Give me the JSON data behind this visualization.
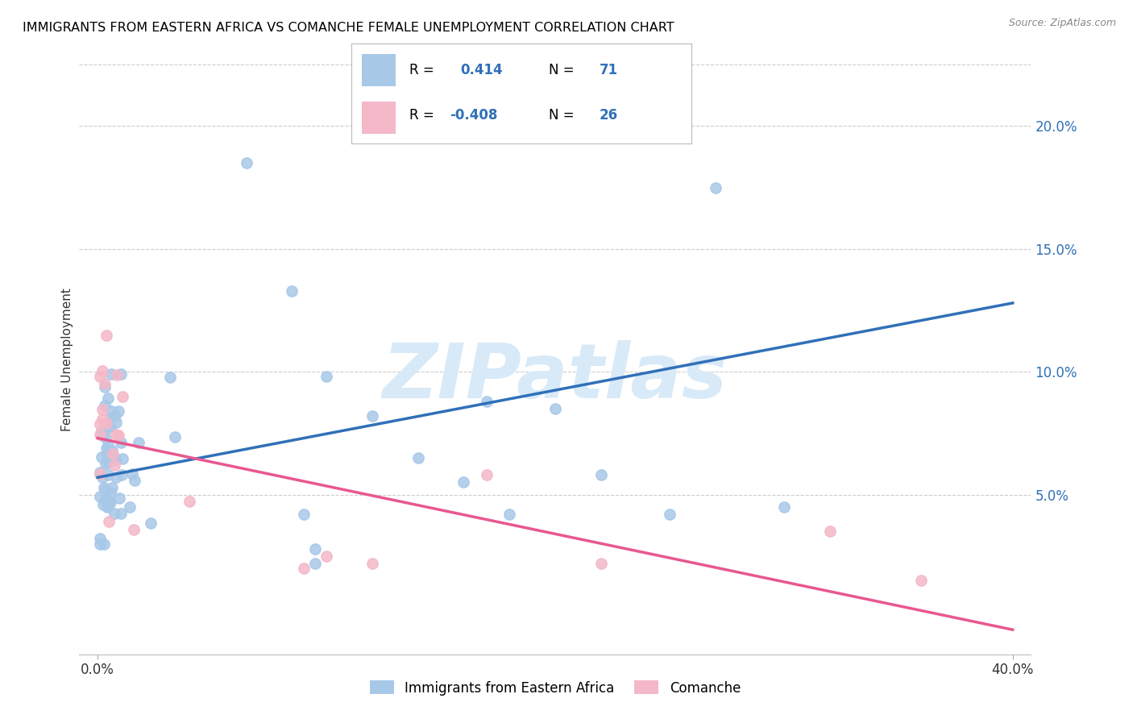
{
  "title": "IMMIGRANTS FROM EASTERN AFRICA VS COMANCHE FEMALE UNEMPLOYMENT CORRELATION CHART",
  "source": "Source: ZipAtlas.com",
  "ylabel": "Female Unemployment",
  "blue_R": "0.414",
  "blue_N": "71",
  "pink_R": "-0.408",
  "pink_N": "26",
  "blue_scatter_color": "#a8c8e8",
  "pink_scatter_color": "#f4b8c8",
  "blue_line_color": "#3070b8",
  "pink_line_color": "#e85890",
  "text_blue_color": "#3070b8",
  "watermark_color": "#d8eaf8",
  "watermark_text": "ZIPatlas",
  "xlim": [
    0.0,
    0.4
  ],
  "ylim": [
    -0.015,
    0.225
  ],
  "right_ytick_vals": [
    0.05,
    0.1,
    0.15,
    0.2
  ],
  "right_ytick_labels": [
    "5.0%",
    "10.0%",
    "15.0%",
    "20.0%"
  ],
  "blue_line_x": [
    0.0,
    0.4
  ],
  "blue_line_y": [
    0.057,
    0.128
  ],
  "pink_line_x": [
    0.0,
    0.4
  ],
  "pink_line_y": [
    0.073,
    -0.005
  ],
  "grid_color": "#cccccc",
  "legend_label_1": "Immigrants from Eastern Africa",
  "legend_label_2": "Comanche"
}
